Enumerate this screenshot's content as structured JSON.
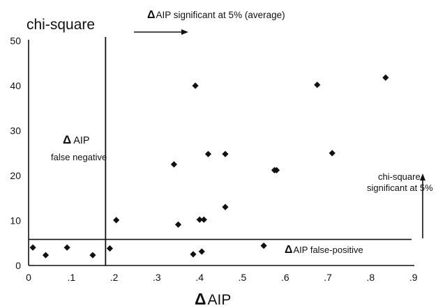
{
  "chart_data": {
    "type": "scatter",
    "ylabel": "chi-square",
    "xlabel_symbol": "Δ",
    "xlabel_text": "AIP",
    "xlim": [
      0,
      0.9
    ],
    "ylim": [
      0,
      50
    ],
    "xticks": [
      {
        "value": 0,
        "label": "0"
      },
      {
        "value": 0.1,
        "label": ".1"
      },
      {
        "value": 0.2,
        "label": ".2"
      },
      {
        "value": 0.3,
        "label": ".3"
      },
      {
        "value": 0.4,
        "label": ".4"
      },
      {
        "value": 0.5,
        "label": ".5"
      },
      {
        "value": 0.6,
        "label": ".6"
      },
      {
        "value": 0.7,
        "label": ".7"
      },
      {
        "value": 0.8,
        "label": ".8"
      },
      {
        "value": 0.9,
        "label": ".9"
      }
    ],
    "yticks": [
      {
        "value": 0,
        "label": "0"
      },
      {
        "value": 10,
        "label": "10"
      },
      {
        "value": 20,
        "label": "20"
      },
      {
        "value": 30,
        "label": "30"
      },
      {
        "value": 40,
        "label": "40"
      },
      {
        "value": 50,
        "label": "50"
      }
    ],
    "points": [
      {
        "x": 0.01,
        "y": 4
      },
      {
        "x": 0.04,
        "y": 2.3
      },
      {
        "x": 0.09,
        "y": 4
      },
      {
        "x": 0.15,
        "y": 2.3
      },
      {
        "x": 0.19,
        "y": 3.8
      },
      {
        "x": 0.205,
        "y": 10.1
      },
      {
        "x": 0.34,
        "y": 22.5
      },
      {
        "x": 0.35,
        "y": 9.1
      },
      {
        "x": 0.385,
        "y": 2.5
      },
      {
        "x": 0.39,
        "y": 40
      },
      {
        "x": 0.4,
        "y": 10.2
      },
      {
        "x": 0.405,
        "y": 3.1
      },
      {
        "x": 0.41,
        "y": 10.2
      },
      {
        "x": 0.42,
        "y": 24.8
      },
      {
        "x": 0.46,
        "y": 24.8
      },
      {
        "x": 0.46,
        "y": 13
      },
      {
        "x": 0.55,
        "y": 4.4
      },
      {
        "x": 0.575,
        "y": 21.2
      },
      {
        "x": 0.58,
        "y": 21.2
      },
      {
        "x": 0.675,
        "y": 40.2
      },
      {
        "x": 0.71,
        "y": 25
      },
      {
        "x": 0.835,
        "y": 41.8
      }
    ],
    "reference_lines": {
      "vertical_x": 0.18,
      "horizontal_y": 5.8
    },
    "annotations": {
      "top": {
        "symbol": "Δ",
        "text": "AIP significant at 5% (average)"
      },
      "false_negative": {
        "symbol": "Δ",
        "line1": "AIP",
        "line2": "false negative"
      },
      "false_positive": {
        "symbol": "Δ",
        "text": "AIP false-positive"
      },
      "chi_sig": {
        "line1": "chi-square",
        "line2": "significant at 5%"
      }
    }
  }
}
